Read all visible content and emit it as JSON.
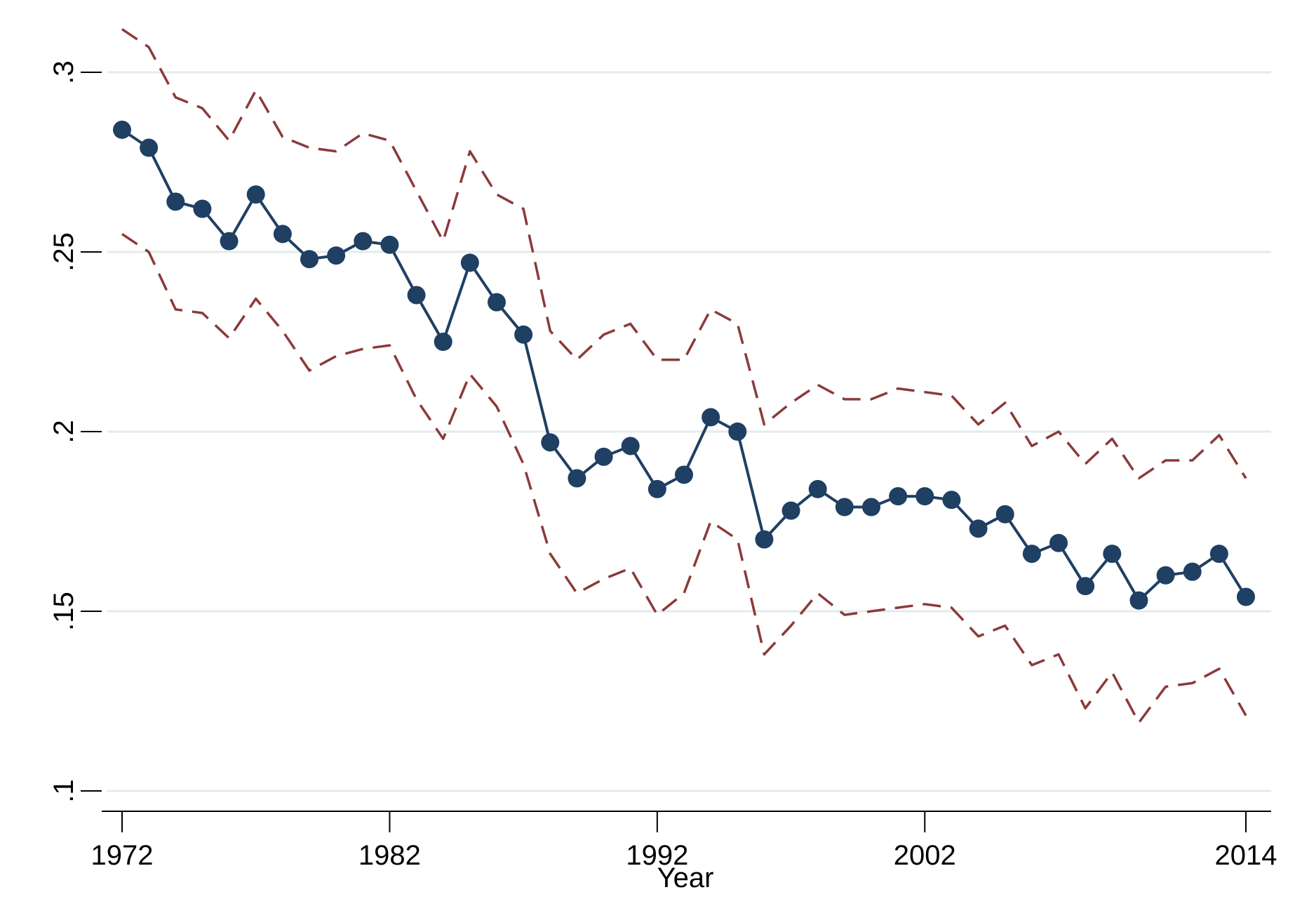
{
  "chart_data": {
    "type": "line",
    "title": "",
    "xlabel": "Year",
    "ylabel": "",
    "xlim": [
      1972,
      2014
    ],
    "ylim": [
      0.1,
      0.31
    ],
    "grid": true,
    "x_ticks": [
      1972,
      1982,
      1992,
      2002,
      2014
    ],
    "x_tick_labels": [
      "1972",
      "1982",
      "1992",
      "2002",
      "2014"
    ],
    "y_ticks": [
      0.1,
      0.15,
      0.2,
      0.25,
      0.3
    ],
    "y_tick_labels": [
      ".1",
      ".15",
      ".2",
      ".25",
      ".3"
    ],
    "x": [
      1972,
      1973,
      1974,
      1975,
      1976,
      1977,
      1978,
      1979,
      1980,
      1981,
      1982,
      1983,
      1984,
      1985,
      1986,
      1987,
      1988,
      1989,
      1990,
      1991,
      1992,
      1993,
      1994,
      1995,
      1996,
      1997,
      1998,
      1999,
      2000,
      2001,
      2002,
      2003,
      2004,
      2005,
      2006,
      2007,
      2008,
      2009,
      2010,
      2011,
      2012,
      2013,
      2014
    ],
    "series": [
      {
        "style": "solid-markers",
        "color": "#1f3f63",
        "values": [
          0.284,
          0.279,
          0.264,
          0.262,
          0.253,
          0.266,
          0.255,
          0.248,
          0.249,
          0.253,
          0.252,
          0.238,
          0.225,
          0.247,
          0.236,
          0.227,
          0.197,
          0.187,
          0.193,
          0.196,
          0.184,
          0.188,
          0.204,
          0.2,
          0.17,
          0.178,
          0.184,
          0.179,
          0.179,
          0.182,
          0.182,
          0.181,
          0.173,
          0.177,
          0.166,
          0.169,
          0.157,
          0.166,
          0.153,
          0.16,
          0.161,
          0.166,
          0.154
        ]
      },
      {
        "style": "dashed",
        "color": "#8b3a3a",
        "values": [
          0.312,
          0.307,
          0.293,
          0.29,
          0.281,
          0.295,
          0.282,
          0.279,
          0.278,
          0.283,
          0.281,
          0.267,
          0.253,
          0.278,
          0.266,
          0.262,
          0.228,
          0.22,
          0.227,
          0.23,
          0.22,
          0.22,
          0.234,
          0.23,
          0.202,
          0.208,
          0.213,
          0.209,
          0.209,
          0.212,
          0.211,
          0.21,
          0.202,
          0.208,
          0.196,
          0.2,
          0.191,
          0.198,
          0.187,
          0.192,
          0.192,
          0.199,
          0.187
        ]
      },
      {
        "style": "dashed",
        "color": "#8b3a3a",
        "values": [
          0.255,
          0.25,
          0.234,
          0.233,
          0.226,
          0.237,
          0.228,
          0.217,
          0.221,
          0.223,
          0.224,
          0.209,
          0.198,
          0.216,
          0.207,
          0.191,
          0.166,
          0.155,
          0.159,
          0.162,
          0.149,
          0.155,
          0.175,
          0.17,
          0.138,
          0.146,
          0.155,
          0.149,
          0.15,
          0.151,
          0.152,
          0.151,
          0.143,
          0.146,
          0.135,
          0.138,
          0.123,
          0.133,
          0.119,
          0.129,
          0.13,
          0.134,
          0.121
        ]
      }
    ]
  }
}
